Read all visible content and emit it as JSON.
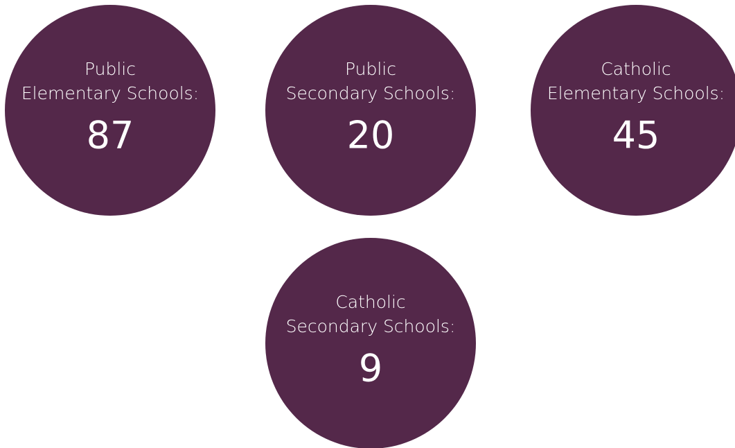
{
  "stats": [
    {
      "label": [
        "Public",
        "Elementary Schools:"
      ],
      "value": 87
    },
    {
      "label": [
        "Public",
        "Secondary Schools:"
      ],
      "value": 20
    },
    {
      "label": [
        "Catholic",
        "Elementary Schools:"
      ],
      "value": 45
    },
    {
      "label": [
        "Catholic",
        "Secondary Schools:"
      ],
      "value": 9
    }
  ]
}
